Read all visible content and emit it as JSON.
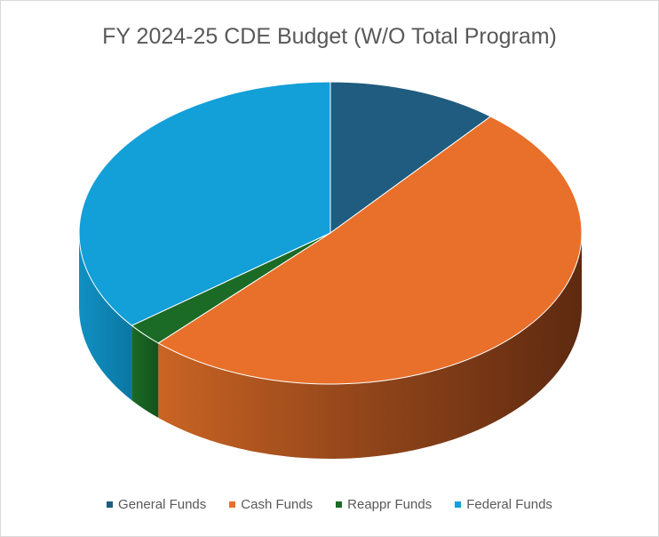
{
  "chart_data": {
    "type": "pie",
    "title": "FY 2024-25 CDE Budget (W/O Total Program)",
    "legend_position": "bottom",
    "three_d": true,
    "slices": [
      {
        "name": "General Funds",
        "value": 11,
        "color": "#1f5c7f"
      },
      {
        "name": "Cash Funds",
        "value": 51,
        "color": "#e8702a"
      },
      {
        "name": "Reappr Funds",
        "value": 2.5,
        "color": "#1b6b26"
      },
      {
        "name": "Federal Funds",
        "value": 35.5,
        "color": "#139fd8"
      }
    ]
  }
}
